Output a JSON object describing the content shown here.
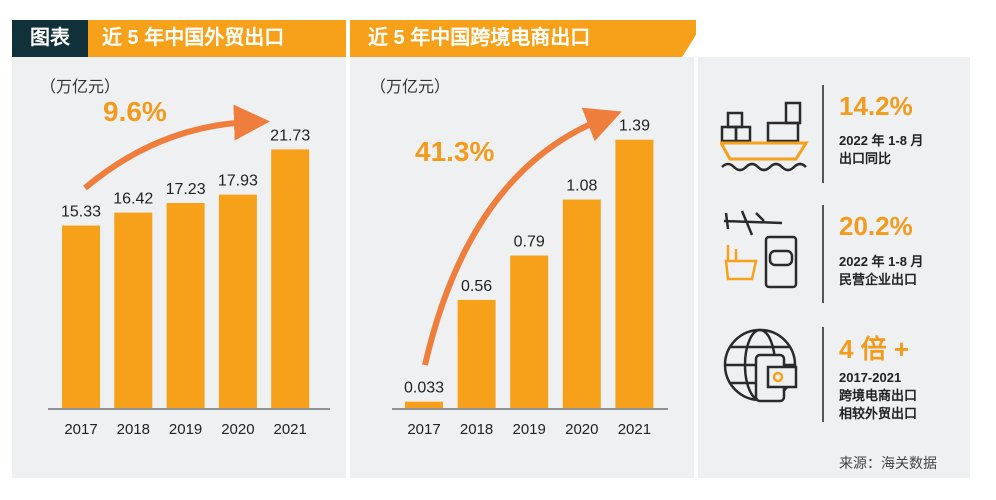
{
  "header": {
    "tag": "图表",
    "title_left": "近 5 年中国外贸出口",
    "title_mid": "近 5 年中国跨境电商出口"
  },
  "colors": {
    "bar": "#f7a11a",
    "header": "#f7a11a",
    "tag": "#10303a",
    "arrow": "#ef7d3b",
    "panel": "#eef0f1"
  },
  "chart_data": [
    {
      "type": "bar",
      "title": "近 5 年中国外贸出口",
      "ylabel": "（万亿元）",
      "categories": [
        "2017",
        "2018",
        "2019",
        "2020",
        "2021"
      ],
      "values": [
        15.33,
        16.42,
        17.23,
        17.93,
        21.73
      ],
      "value_labels": [
        "15.33",
        "16.42",
        "17.23",
        "17.93",
        "21.73"
      ],
      "annotation": "9.6%",
      "grid": false
    },
    {
      "type": "bar",
      "title": "近 5 年中国跨境电商出口",
      "ylabel": "（万亿元）",
      "categories": [
        "2017",
        "2018",
        "2019",
        "2020",
        "2021"
      ],
      "values": [
        0.033,
        0.56,
        0.79,
        1.08,
        1.39
      ],
      "value_labels": [
        "0.033",
        "0.56",
        "0.79",
        "1.08",
        "1.39"
      ],
      "annotation": "41.3%",
      "grid": false
    }
  ],
  "stats": [
    {
      "icon": "cargo-ship-icon",
      "value": "14.2%",
      "lines": [
        "2022 年 1-8 月",
        "出口同比"
      ]
    },
    {
      "icon": "plane-truck-factory-icon",
      "value": "20.2%",
      "lines": [
        "2022 年 1-8 月",
        "民营企业出口"
      ]
    },
    {
      "icon": "globe-phone-icon",
      "value": "4 倍 +",
      "lines": [
        "2017-2021",
        "跨境电商出口",
        "相较外贸出口"
      ]
    }
  ],
  "source": "来源：海关数据"
}
